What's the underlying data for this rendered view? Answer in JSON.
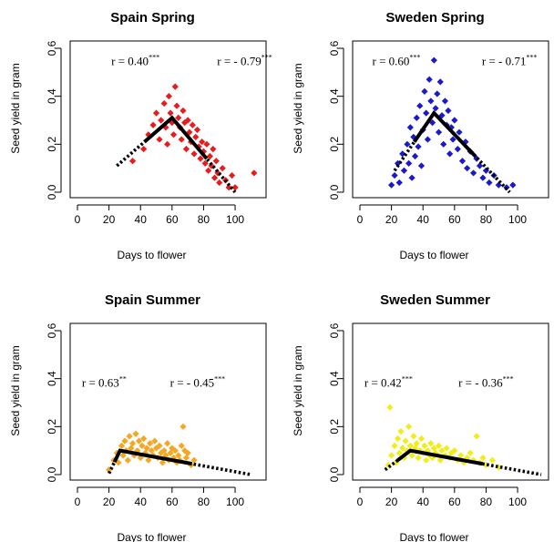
{
  "chart_data": [
    {
      "type": "scatter",
      "title": "Spain Spring",
      "xlabel": "Days to flower",
      "ylabel": "Seed yield in gram",
      "xlim": [
        0,
        115
      ],
      "ylim": [
        0,
        0.6
      ],
      "x_ticks": [
        "0",
        "20",
        "40",
        "60",
        "80",
        "100"
      ],
      "y_ticks": [
        "0.0",
        "0.2",
        "0.4",
        "0.6"
      ],
      "color": "#e81c1c",
      "annotations": [
        {
          "text": "r = 0.40",
          "sup": "***"
        },
        {
          "text": "r = - 0.79",
          "sup": "***"
        }
      ],
      "fit_line": [
        [
          25,
          0.11
        ],
        [
          60,
          0.31
        ],
        [
          100,
          0.0
        ]
      ],
      "points": [
        [
          35,
          0.13
        ],
        [
          42,
          0.18
        ],
        [
          45,
          0.24
        ],
        [
          48,
          0.28
        ],
        [
          50,
          0.33
        ],
        [
          52,
          0.22
        ],
        [
          53,
          0.3
        ],
        [
          55,
          0.37
        ],
        [
          56,
          0.27
        ],
        [
          57,
          0.2
        ],
        [
          58,
          0.4
        ],
        [
          59,
          0.33
        ],
        [
          60,
          0.29
        ],
        [
          61,
          0.24
        ],
        [
          62,
          0.44
        ],
        [
          63,
          0.36
        ],
        [
          64,
          0.31
        ],
        [
          65,
          0.27
        ],
        [
          66,
          0.22
        ],
        [
          67,
          0.34
        ],
        [
          68,
          0.29
        ],
        [
          69,
          0.18
        ],
        [
          70,
          0.3
        ],
        [
          71,
          0.25
        ],
        [
          72,
          0.21
        ],
        [
          73,
          0.28
        ],
        [
          74,
          0.16
        ],
        [
          75,
          0.23
        ],
        [
          76,
          0.26
        ],
        [
          77,
          0.19
        ],
        [
          78,
          0.14
        ],
        [
          79,
          0.21
        ],
        [
          80,
          0.17
        ],
        [
          81,
          0.12
        ],
        [
          82,
          0.2
        ],
        [
          83,
          0.09
        ],
        [
          84,
          0.15
        ],
        [
          85,
          0.11
        ],
        [
          86,
          0.18
        ],
        [
          87,
          0.06
        ],
        [
          88,
          0.13
        ],
        [
          89,
          0.08
        ],
        [
          90,
          0.04
        ],
        [
          92,
          0.1
        ],
        [
          94,
          0.05
        ],
        [
          96,
          0.02
        ],
        [
          98,
          0.07
        ],
        [
          100,
          0.02
        ],
        [
          112,
          0.08
        ]
      ]
    },
    {
      "type": "scatter",
      "title": "Sweden Spring",
      "xlabel": "Days to flower",
      "ylabel": "Seed yield in gram",
      "xlim": [
        0,
        115
      ],
      "ylim": [
        0,
        0.6
      ],
      "x_ticks": [
        "0",
        "20",
        "40",
        "60",
        "80",
        "100"
      ],
      "y_ticks": [
        "0.0",
        "0.2",
        "0.4",
        "0.6"
      ],
      "color": "#1a1acc",
      "annotations": [
        {
          "text": "r = 0.60",
          "sup": "***"
        },
        {
          "text": "r = - 0.71",
          "sup": "***"
        }
      ],
      "fit_line": [
        [
          22,
          0.09
        ],
        [
          47,
          0.33
        ],
        [
          95,
          0.0
        ]
      ],
      "points": [
        [
          20,
          0.03
        ],
        [
          22,
          0.07
        ],
        [
          24,
          0.12
        ],
        [
          25,
          0.04
        ],
        [
          27,
          0.16
        ],
        [
          28,
          0.09
        ],
        [
          30,
          0.2
        ],
        [
          31,
          0.12
        ],
        [
          32,
          0.27
        ],
        [
          33,
          0.06
        ],
        [
          34,
          0.23
        ],
        [
          35,
          0.15
        ],
        [
          36,
          0.31
        ],
        [
          37,
          0.19
        ],
        [
          38,
          0.36
        ],
        [
          39,
          0.11
        ],
        [
          40,
          0.26
        ],
        [
          41,
          0.42
        ],
        [
          42,
          0.33
        ],
        [
          43,
          0.22
        ],
        [
          44,
          0.47
        ],
        [
          45,
          0.38
        ],
        [
          46,
          0.29
        ],
        [
          47,
          0.55
        ],
        [
          48,
          0.35
        ],
        [
          49,
          0.41
        ],
        [
          50,
          0.25
        ],
        [
          51,
          0.46
        ],
        [
          52,
          0.32
        ],
        [
          53,
          0.2
        ],
        [
          54,
          0.38
        ],
        [
          55,
          0.28
        ],
        [
          56,
          0.34
        ],
        [
          57,
          0.16
        ],
        [
          58,
          0.27
        ],
        [
          59,
          0.22
        ],
        [
          60,
          0.3
        ],
        [
          62,
          0.18
        ],
        [
          63,
          0.25
        ],
        [
          65,
          0.13
        ],
        [
          67,
          0.21
        ],
        [
          68,
          0.1
        ],
        [
          70,
          0.17
        ],
        [
          72,
          0.08
        ],
        [
          74,
          0.14
        ],
        [
          76,
          0.11
        ],
        [
          78,
          0.06
        ],
        [
          80,
          0.09
        ],
        [
          82,
          0.04
        ],
        [
          85,
          0.07
        ],
        [
          88,
          0.03
        ],
        [
          93,
          0.02
        ],
        [
          97,
          0.03
        ]
      ]
    },
    {
      "type": "scatter",
      "title": "Spain Summer",
      "xlabel": "Days to flower",
      "ylabel": "Seed yield in gram",
      "xlim": [
        0,
        115
      ],
      "ylim": [
        0,
        0.6
      ],
      "x_ticks": [
        "0",
        "20",
        "40",
        "60",
        "80",
        "100"
      ],
      "y_ticks": [
        "0.0",
        "0.2",
        "0.4",
        "0.6"
      ],
      "color": "#f5a623",
      "annotations": [
        {
          "text": "r = 0.63",
          "sup": "**"
        },
        {
          "text": "r = - 0.45",
          "sup": "***"
        }
      ],
      "fit_line": [
        [
          20,
          0.005
        ],
        [
          27,
          0.1
        ],
        [
          110,
          0.0
        ]
      ],
      "points": [
        [
          20,
          0.02
        ],
        [
          23,
          0.06
        ],
        [
          25,
          0.09
        ],
        [
          26,
          0.05
        ],
        [
          28,
          0.12
        ],
        [
          29,
          0.08
        ],
        [
          30,
          0.14
        ],
        [
          31,
          0.1
        ],
        [
          32,
          0.06
        ],
        [
          33,
          0.16
        ],
        [
          34,
          0.11
        ],
        [
          35,
          0.13
        ],
        [
          36,
          0.08
        ],
        [
          37,
          0.17
        ],
        [
          38,
          0.1
        ],
        [
          39,
          0.14
        ],
        [
          40,
          0.07
        ],
        [
          41,
          0.12
        ],
        [
          42,
          0.15
        ],
        [
          43,
          0.09
        ],
        [
          44,
          0.11
        ],
        [
          45,
          0.06
        ],
        [
          46,
          0.13
        ],
        [
          47,
          0.1
        ],
        [
          48,
          0.08
        ],
        [
          49,
          0.14
        ],
        [
          50,
          0.11
        ],
        [
          51,
          0.07
        ],
        [
          52,
          0.12
        ],
        [
          53,
          0.09
        ],
        [
          54,
          0.05
        ],
        [
          55,
          0.1
        ],
        [
          56,
          0.08
        ],
        [
          57,
          0.13
        ],
        [
          58,
          0.06
        ],
        [
          59,
          0.09
        ],
        [
          60,
          0.11
        ],
        [
          61,
          0.07
        ],
        [
          62,
          0.1
        ],
        [
          63,
          0.05
        ],
        [
          64,
          0.08
        ],
        [
          65,
          0.06
        ],
        [
          66,
          0.12
        ],
        [
          67,
          0.2
        ],
        [
          68,
          0.1
        ],
        [
          69,
          0.07
        ],
        [
          70,
          0.09
        ],
        [
          72,
          0.04
        ],
        [
          74,
          0.06
        ]
      ]
    },
    {
      "type": "scatter",
      "title": "Sweden Summer",
      "xlabel": "Days to flower",
      "ylabel": "Seed yield in gram",
      "xlim": [
        0,
        115
      ],
      "ylim": [
        0,
        0.6
      ],
      "x_ticks": [
        "0",
        "20",
        "40",
        "60",
        "80",
        "100"
      ],
      "y_ticks": [
        "0.0",
        "0.2",
        "0.4",
        "0.6"
      ],
      "color": "#f2ec19",
      "annotations": [
        {
          "text": "r = 0.42",
          "sup": "***"
        },
        {
          "text": "r = - 0.36",
          "sup": "***"
        }
      ],
      "fit_line": [
        [
          16,
          0.02
        ],
        [
          32,
          0.1
        ],
        [
          115,
          0.0
        ]
      ],
      "points": [
        [
          18,
          0.04
        ],
        [
          19,
          0.28
        ],
        [
          20,
          0.08
        ],
        [
          22,
          0.12
        ],
        [
          23,
          0.05
        ],
        [
          24,
          0.15
        ],
        [
          25,
          0.09
        ],
        [
          26,
          0.18
        ],
        [
          27,
          0.11
        ],
        [
          28,
          0.07
        ],
        [
          29,
          0.14
        ],
        [
          30,
          0.1
        ],
        [
          31,
          0.2
        ],
        [
          32,
          0.12
        ],
        [
          33,
          0.08
        ],
        [
          34,
          0.16
        ],
        [
          35,
          0.11
        ],
        [
          36,
          0.13
        ],
        [
          37,
          0.07
        ],
        [
          38,
          0.1
        ],
        [
          39,
          0.15
        ],
        [
          40,
          0.09
        ],
        [
          41,
          0.12
        ],
        [
          42,
          0.06
        ],
        [
          43,
          0.1
        ],
        [
          44,
          0.08
        ],
        [
          45,
          0.13
        ],
        [
          46,
          0.07
        ],
        [
          47,
          0.11
        ],
        [
          48,
          0.09
        ],
        [
          50,
          0.12
        ],
        [
          51,
          0.06
        ],
        [
          52,
          0.1
        ],
        [
          54,
          0.08
        ],
        [
          55,
          0.11
        ],
        [
          57,
          0.07
        ],
        [
          58,
          0.09
        ],
        [
          60,
          0.1
        ],
        [
          62,
          0.06
        ],
        [
          64,
          0.08
        ],
        [
          66,
          0.05
        ],
        [
          68,
          0.07
        ],
        [
          70,
          0.09
        ],
        [
          72,
          0.06
        ],
        [
          74,
          0.16
        ],
        [
          76,
          0.05
        ],
        [
          78,
          0.07
        ],
        [
          80,
          0.04
        ],
        [
          84,
          0.06
        ],
        [
          88,
          0.03
        ]
      ]
    }
  ]
}
